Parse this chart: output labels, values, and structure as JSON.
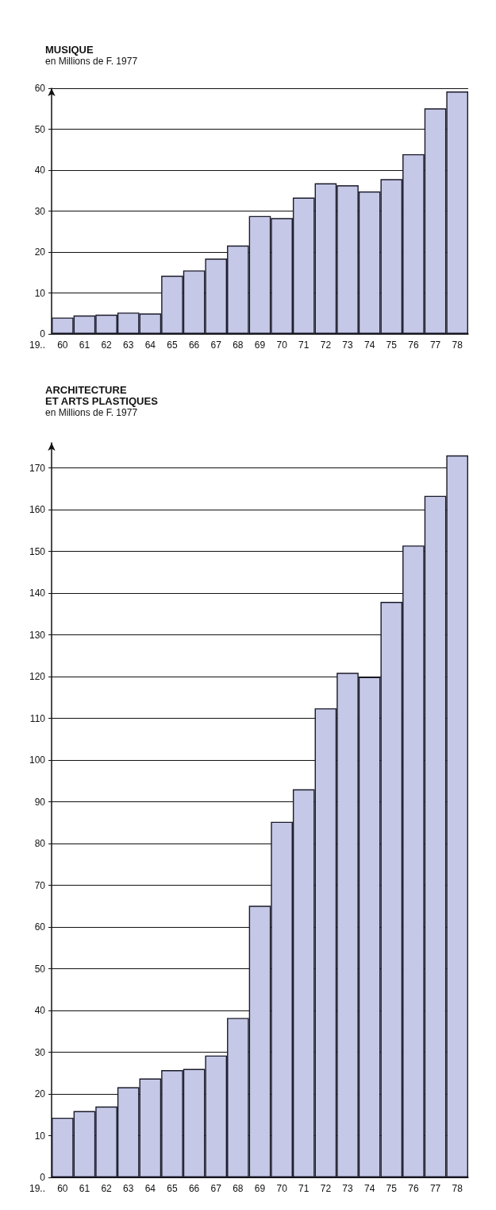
{
  "chart_data": [
    {
      "type": "bar",
      "title": "MUSIQUE",
      "subtitle": "en Millions de F. 1977",
      "xlabel": "19..",
      "categories": [
        "60",
        "61",
        "62",
        "63",
        "64",
        "65",
        "66",
        "67",
        "68",
        "69",
        "70",
        "71",
        "72",
        "73",
        "74",
        "75",
        "76",
        "77",
        "78"
      ],
      "values": [
        4.0,
        4.5,
        4.7,
        5.2,
        5.0,
        14.2,
        15.5,
        18.4,
        21.6,
        28.8,
        28.3,
        33.3,
        36.8,
        36.3,
        34.8,
        37.8,
        43.9,
        55.1,
        59.2
      ],
      "color": "#c5c8e6",
      "ylim": [
        0,
        60
      ],
      "yticks": [
        0,
        10,
        20,
        30,
        40,
        50,
        60
      ],
      "grid": "y"
    },
    {
      "type": "bar",
      "title": "ARCHITECTURE\nET ARTS PLASTIQUES",
      "subtitle": "en Millions de F. 1977",
      "xlabel": "19..",
      "categories": [
        "60",
        "61",
        "62",
        "63",
        "64",
        "65",
        "66",
        "67",
        "68",
        "69",
        "70",
        "71",
        "72",
        "73",
        "74",
        "75",
        "76",
        "77",
        "78"
      ],
      "values": [
        14.3,
        15.9,
        17.0,
        21.6,
        23.7,
        25.7,
        26.0,
        29.2,
        38.2,
        65.1,
        85.2,
        93.0,
        112.4,
        120.9,
        119.9,
        137.9,
        151.4,
        163.3,
        173.0
      ],
      "color": "#c5c8e6",
      "ylim": [
        0,
        176
      ],
      "yticks": [
        0,
        10,
        20,
        30,
        40,
        50,
        60,
        70,
        80,
        90,
        100,
        110,
        120,
        130,
        140,
        150,
        160,
        170
      ],
      "grid": "y"
    }
  ]
}
